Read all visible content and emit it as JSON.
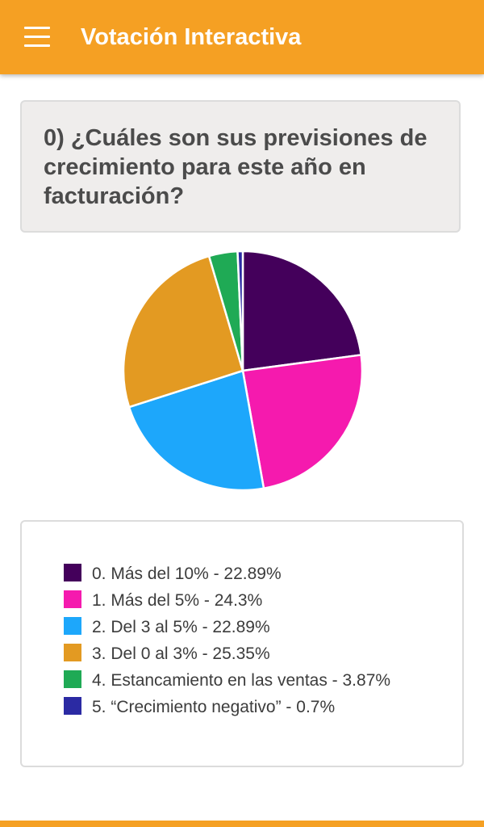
{
  "app": {
    "title": "Votación Interactiva",
    "menu_icon": "hamburger-menu-icon",
    "header_color": "#f5a023"
  },
  "question": {
    "text": "0) ¿Cuáles son sus previsiones de crecimiento para este año en facturación?"
  },
  "chart_data": {
    "type": "pie",
    "title": "",
    "categories": [
      "0. Más del 10%",
      "1. Más del 5%",
      "2. Del 3 al 5%",
      "3. Del 0 al 3%",
      "4. Estancamiento en las ventas",
      "5. “Crecimiento negativo”"
    ],
    "values": [
      22.89,
      24.3,
      22.89,
      25.35,
      3.87,
      0.7
    ],
    "colors": [
      "#44005b",
      "#f51aae",
      "#1da7fb",
      "#e39a22",
      "#1faa55",
      "#2b2aa3"
    ],
    "legend": [
      "0. Más del 10% - 22.89%",
      "1. Más del 5% - 24.3%",
      "2. Del 3 al 5% - 22.89%",
      "3. Del 0 al 3% - 25.35%",
      "4. Estancamiento en las ventas - 3.87%",
      "5. “Crecimiento negativo” - 0.7%"
    ],
    "legend_placement": "below"
  }
}
